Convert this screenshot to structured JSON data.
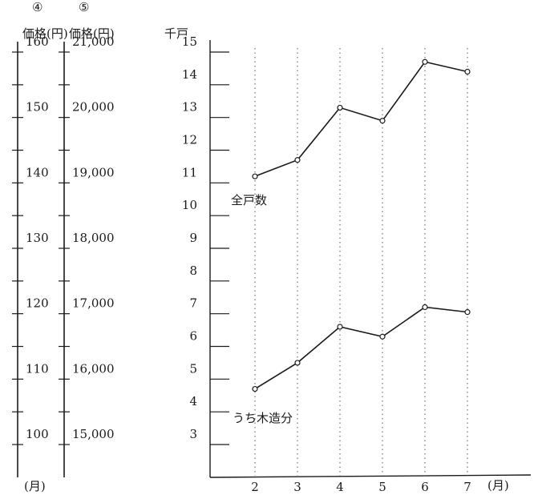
{
  "headers": {
    "axis4_marker": "④",
    "axis4_label": "価格(円)",
    "axis5_marker": "⑤",
    "axis5_label": "価格(円)",
    "main_unit": "千戸",
    "left_month_label": "(月)"
  },
  "chart_data": {
    "type": "line",
    "x": [
      2,
      3,
      4,
      5,
      6,
      7
    ],
    "xlabel": "(月)",
    "ylabel": "千戸",
    "ylim": [
      3,
      15
    ],
    "y_ticks": [
      "3",
      "4",
      "5",
      "6",
      "7",
      "8",
      "9",
      "10",
      "11",
      "12",
      "13",
      "14",
      "15"
    ],
    "grid": "vertical dotted lines at each month",
    "series": [
      {
        "name": "全戸数",
        "values": [
          11.2,
          11.7,
          13.3,
          12.9,
          14.7,
          14.4
        ]
      },
      {
        "name": "うち木造分",
        "values": [
          4.7,
          5.5,
          6.6,
          6.3,
          7.2,
          7.05
        ]
      }
    ],
    "secondary_axes": [
      {
        "marker": "④",
        "label": "価格(円)",
        "range": [
          100,
          160
        ],
        "ticks": [
          "100",
          "110",
          "120",
          "130",
          "140",
          "150",
          "160"
        ]
      },
      {
        "marker": "⑤",
        "label": "価格(円)",
        "range": [
          15000,
          21000
        ],
        "ticks": [
          "15,000",
          "16,000",
          "17,000",
          "18,000",
          "19,000",
          "20,000",
          "21,000"
        ]
      }
    ]
  }
}
